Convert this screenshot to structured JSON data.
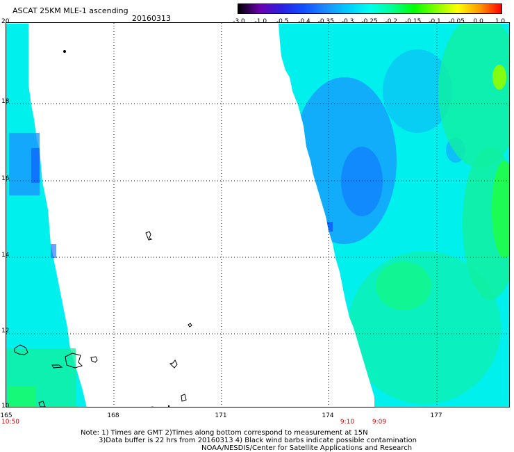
{
  "header": {
    "title": "ASCAT 25KM MLE-1 ascending",
    "date": "20160313"
  },
  "colorbar": {
    "tick_labels": [
      "-3.0",
      "-1.0",
      "-0.5",
      "-0.4",
      "-0.35",
      "-0.3",
      "-0.25",
      "-0.2",
      "-0.15",
      "-0.1",
      "-0.05",
      "0.0",
      "1.0"
    ],
    "colors": [
      "#000000",
      "#6a00b0",
      "#2a20e0",
      "#1050ff",
      "#1a8cff",
      "#00ccff",
      "#00ffee",
      "#00ff99",
      "#00ff00",
      "#80ff00",
      "#ffff00",
      "#ff9900",
      "#ff0000"
    ]
  },
  "map": {
    "lat_labels": [
      "20",
      "18",
      "16",
      "14",
      "12",
      "10"
    ],
    "lon_labels": [
      "165",
      "168",
      "171",
      "174",
      "177"
    ],
    "pass_times": [
      "10:50",
      "9:10",
      "9:09"
    ],
    "lat_range": [
      10,
      20
    ],
    "lon_range": [
      165,
      179
    ],
    "grid": true,
    "colors": {
      "swath_main": "#00f0ee",
      "swath_blue": "#1a90ff",
      "swath_deep_blue": "#1060ff",
      "swath_green": "#10f0a0",
      "swath_bright_green": "#20ff40",
      "swath_yellow_green": "#90ff00",
      "land_outline": "#000000",
      "time_label": "#cc0000"
    }
  },
  "footer": {
    "note_line1": "Note: 1) Times are GMT 2)Times along bottom correspond to measurement at 15N",
    "note_line2": "3)Data buffer is 22 hrs from 20160313 4) Black wind barbs indicate possible contamination",
    "note_line3": "NOAA/NESDIS/Center for Satellite Applications and Research"
  }
}
